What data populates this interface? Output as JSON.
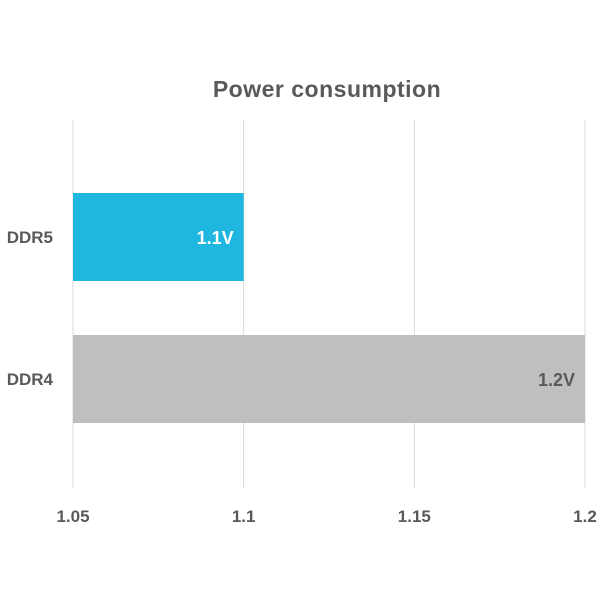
{
  "chart_data": {
    "type": "bar",
    "orientation": "horizontal",
    "title": "Power consumption",
    "xlabel": "",
    "ylabel": "",
    "categories": [
      "DDR5",
      "DDR4"
    ],
    "values": [
      1.1,
      1.2
    ],
    "data_labels": [
      "1.1V",
      "1.2V"
    ],
    "bar_colors": [
      "#1fb6e0",
      "#bfbfbf"
    ],
    "data_label_colors": [
      "#ffffff",
      "#595959"
    ],
    "xlim": [
      1.05,
      1.2
    ],
    "xticks": [
      1.05,
      1.1,
      1.15,
      1.2
    ],
    "xtick_labels": [
      "1.05",
      "1.1",
      "1.15",
      "1.2"
    ],
    "grid": true,
    "legend": "none"
  }
}
